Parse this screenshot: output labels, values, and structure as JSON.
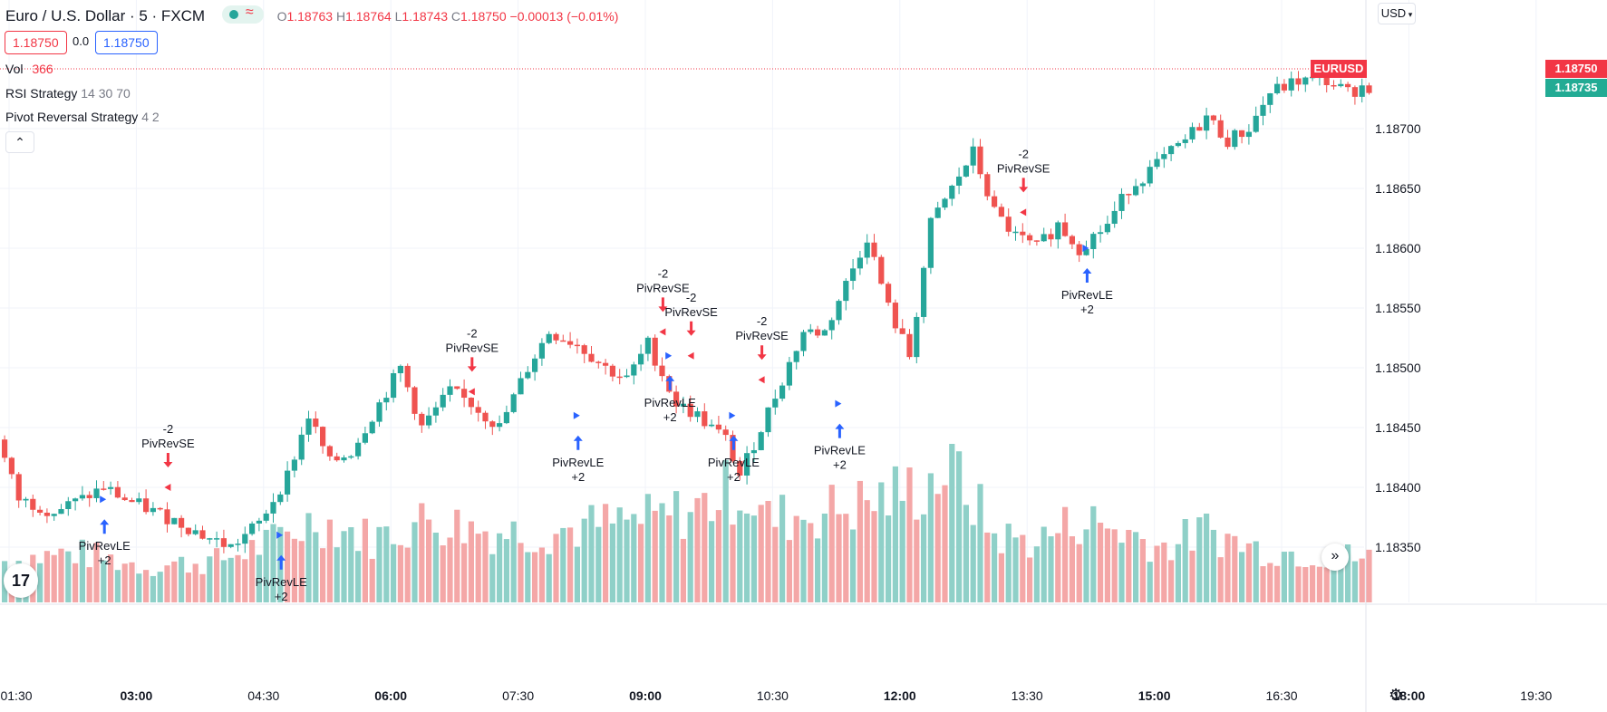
{
  "header": {
    "symbol_title": "Euro / U.S. Dollar · 5 · FXCM",
    "market_status_icon": "green-dot-icon",
    "wave_icon": "approx-wave-icon",
    "ohlc": {
      "o_label": "O",
      "o_value": "1.18763",
      "h_label": "H",
      "h_value": "1.18764",
      "l_label": "L",
      "l_value": "1.18743",
      "c_label": "C",
      "c_value": "1.18750",
      "change": "−0.00013 (−0.01%)"
    }
  },
  "trade": {
    "sell_price": "1.18750",
    "spread": "0.0",
    "buy_price": "1.18750"
  },
  "indicators": {
    "vol_label": "Vol",
    "vol_value": "366",
    "rsi_name": "RSI Strategy",
    "rsi_params": "14 30 70",
    "pivot_name": "Pivot Reversal Strategy",
    "pivot_params": "4 2",
    "collapse_icon": "chevron-up-icon"
  },
  "price_scale": {
    "currency": "USD",
    "ticks": [
      "1.18700",
      "1.18650",
      "1.18600",
      "1.18550",
      "1.18500",
      "1.18450",
      "1.18400",
      "1.18350"
    ],
    "symbol_tag": "EURUSD",
    "last_price": "1.18750",
    "second_price": "1.18735"
  },
  "time_scale": {
    "ticks": [
      {
        "label": "01:30",
        "bold": false
      },
      {
        "label": "03:00",
        "bold": true
      },
      {
        "label": "04:30",
        "bold": false
      },
      {
        "label": "06:00",
        "bold": true
      },
      {
        "label": "07:30",
        "bold": false
      },
      {
        "label": "09:00",
        "bold": true
      },
      {
        "label": "10:30",
        "bold": false
      },
      {
        "label": "12:00",
        "bold": true
      },
      {
        "label": "13:30",
        "bold": false
      },
      {
        "label": "15:00",
        "bold": true
      },
      {
        "label": "16:30",
        "bold": false
      },
      {
        "label": "18:00",
        "bold": true
      },
      {
        "label": "19:30",
        "bold": false
      }
    ]
  },
  "colors": {
    "up": "#26a69a",
    "down": "#ef5350",
    "vol_up": "#8fd0c8",
    "vol_down": "#f4a7a7",
    "long_arrow": "#2962ff",
    "short_arrow": "#f23645",
    "grid": "#f0f3fa",
    "text": "#131722"
  },
  "chart_data": {
    "type": "candlestick",
    "symbol": "EURUSD",
    "interval": "5",
    "ylim": [
      1.183,
      1.1876
    ],
    "price_path": [
      [
        0,
        1.1844
      ],
      [
        3,
        1.1839
      ],
      [
        8,
        1.1838
      ],
      [
        12,
        1.1839
      ],
      [
        15,
        1.184
      ],
      [
        18,
        1.1839
      ],
      [
        22,
        1.1838
      ],
      [
        26,
        1.1837
      ],
      [
        29,
        1.1836
      ],
      [
        33,
        1.1835
      ],
      [
        37,
        1.1837
      ],
      [
        41,
        1.1841
      ],
      [
        44,
        1.1846
      ],
      [
        47,
        1.1842
      ],
      [
        50,
        1.1843
      ],
      [
        54,
        1.1847
      ],
      [
        57,
        1.185
      ],
      [
        60,
        1.1845
      ],
      [
        64,
        1.1848
      ],
      [
        67,
        1.1847
      ],
      [
        71,
        1.1845
      ],
      [
        75,
        1.185
      ],
      [
        78,
        1.1853
      ],
      [
        82,
        1.1852
      ],
      [
        86,
        1.185
      ],
      [
        89,
        1.1849
      ],
      [
        92,
        1.1852
      ],
      [
        96,
        1.1847
      ],
      [
        99,
        1.1846
      ],
      [
        103,
        1.1844
      ],
      [
        105,
        1.1841
      ],
      [
        108,
        1.1845
      ],
      [
        111,
        1.1849
      ],
      [
        114,
        1.1853
      ],
      [
        117,
        1.1853
      ],
      [
        120,
        1.1857
      ],
      [
        123,
        1.1861
      ],
      [
        126,
        1.1855
      ],
      [
        129,
        1.1851
      ],
      [
        132,
        1.1862
      ],
      [
        135,
        1.1865
      ],
      [
        138,
        1.1868
      ],
      [
        141,
        1.1863
      ],
      [
        144,
        1.1861
      ],
      [
        147,
        1.186
      ],
      [
        150,
        1.1862
      ],
      [
        153,
        1.186
      ],
      [
        157,
        1.1862
      ],
      [
        160,
        1.1865
      ],
      [
        164,
        1.1867
      ],
      [
        168,
        1.1869
      ],
      [
        171,
        1.1871
      ],
      [
        174,
        1.1869
      ],
      [
        177,
        1.187
      ],
      [
        180,
        1.1873
      ],
      [
        184,
        1.1874
      ],
      [
        188,
        1.1874
      ],
      [
        191,
        1.1873
      ],
      [
        193,
        1.18735
      ]
    ],
    "volume_path": [
      [
        0,
        150
      ],
      [
        10,
        180
      ],
      [
        20,
        130
      ],
      [
        30,
        150
      ],
      [
        38,
        220
      ],
      [
        44,
        300
      ],
      [
        52,
        230
      ],
      [
        60,
        300
      ],
      [
        68,
        260
      ],
      [
        76,
        250
      ],
      [
        84,
        280
      ],
      [
        92,
        300
      ],
      [
        98,
        340
      ],
      [
        104,
        420
      ],
      [
        108,
        300
      ],
      [
        116,
        330
      ],
      [
        122,
        360
      ],
      [
        130,
        420
      ],
      [
        134,
        500
      ],
      [
        140,
        240
      ],
      [
        146,
        220
      ],
      [
        152,
        300
      ],
      [
        158,
        260
      ],
      [
        164,
        200
      ],
      [
        170,
        260
      ],
      [
        176,
        200
      ],
      [
        182,
        180
      ],
      [
        188,
        170
      ],
      [
        193,
        160
      ]
    ],
    "signals": [
      {
        "type": "long",
        "label": "PivRevLE",
        "qty": "+2",
        "bar": 14,
        "price": 1.1839
      },
      {
        "type": "short",
        "label": "PivRevSE",
        "qty": "-2",
        "bar": 23,
        "price": 1.184
      },
      {
        "type": "long",
        "label": "PivRevLE",
        "qty": "+2",
        "bar": 39,
        "price": 1.1836
      },
      {
        "type": "short",
        "label": "PivRevSE",
        "qty": "-2",
        "bar": 66,
        "price": 1.1848
      },
      {
        "type": "long",
        "label": "PivRevLE",
        "qty": "+2",
        "bar": 81,
        "price": 1.1846
      },
      {
        "type": "short",
        "label": "PivRevSE",
        "qty": "-2",
        "bar": 93,
        "price": 1.1853
      },
      {
        "type": "long",
        "label": "PivRevLE",
        "qty": "+2",
        "bar": 94,
        "price": 1.1851
      },
      {
        "type": "short",
        "label": "PivRevSE",
        "qty": "-2",
        "bar": 97,
        "price": 1.1851
      },
      {
        "type": "long",
        "label": "PivRevLE",
        "qty": "+2",
        "bar": 103,
        "price": 1.1846
      },
      {
        "type": "short",
        "label": "PivRevSE",
        "qty": "-2",
        "bar": 107,
        "price": 1.1849
      },
      {
        "type": "long",
        "label": "PivRevLE",
        "qty": "+2",
        "bar": 118,
        "price": 1.1847
      },
      {
        "type": "short",
        "label": "PivRevSE",
        "qty": "-2",
        "bar": 144,
        "price": 1.1863
      },
      {
        "type": "long",
        "label": "PivRevLE",
        "qty": "+2",
        "bar": 153,
        "price": 1.186
      }
    ]
  },
  "bottom": {
    "logo_icon": "tradingview-logo-icon",
    "scroll_icon": "double-chevron-right-icon",
    "settings_icon": "gear-icon"
  }
}
